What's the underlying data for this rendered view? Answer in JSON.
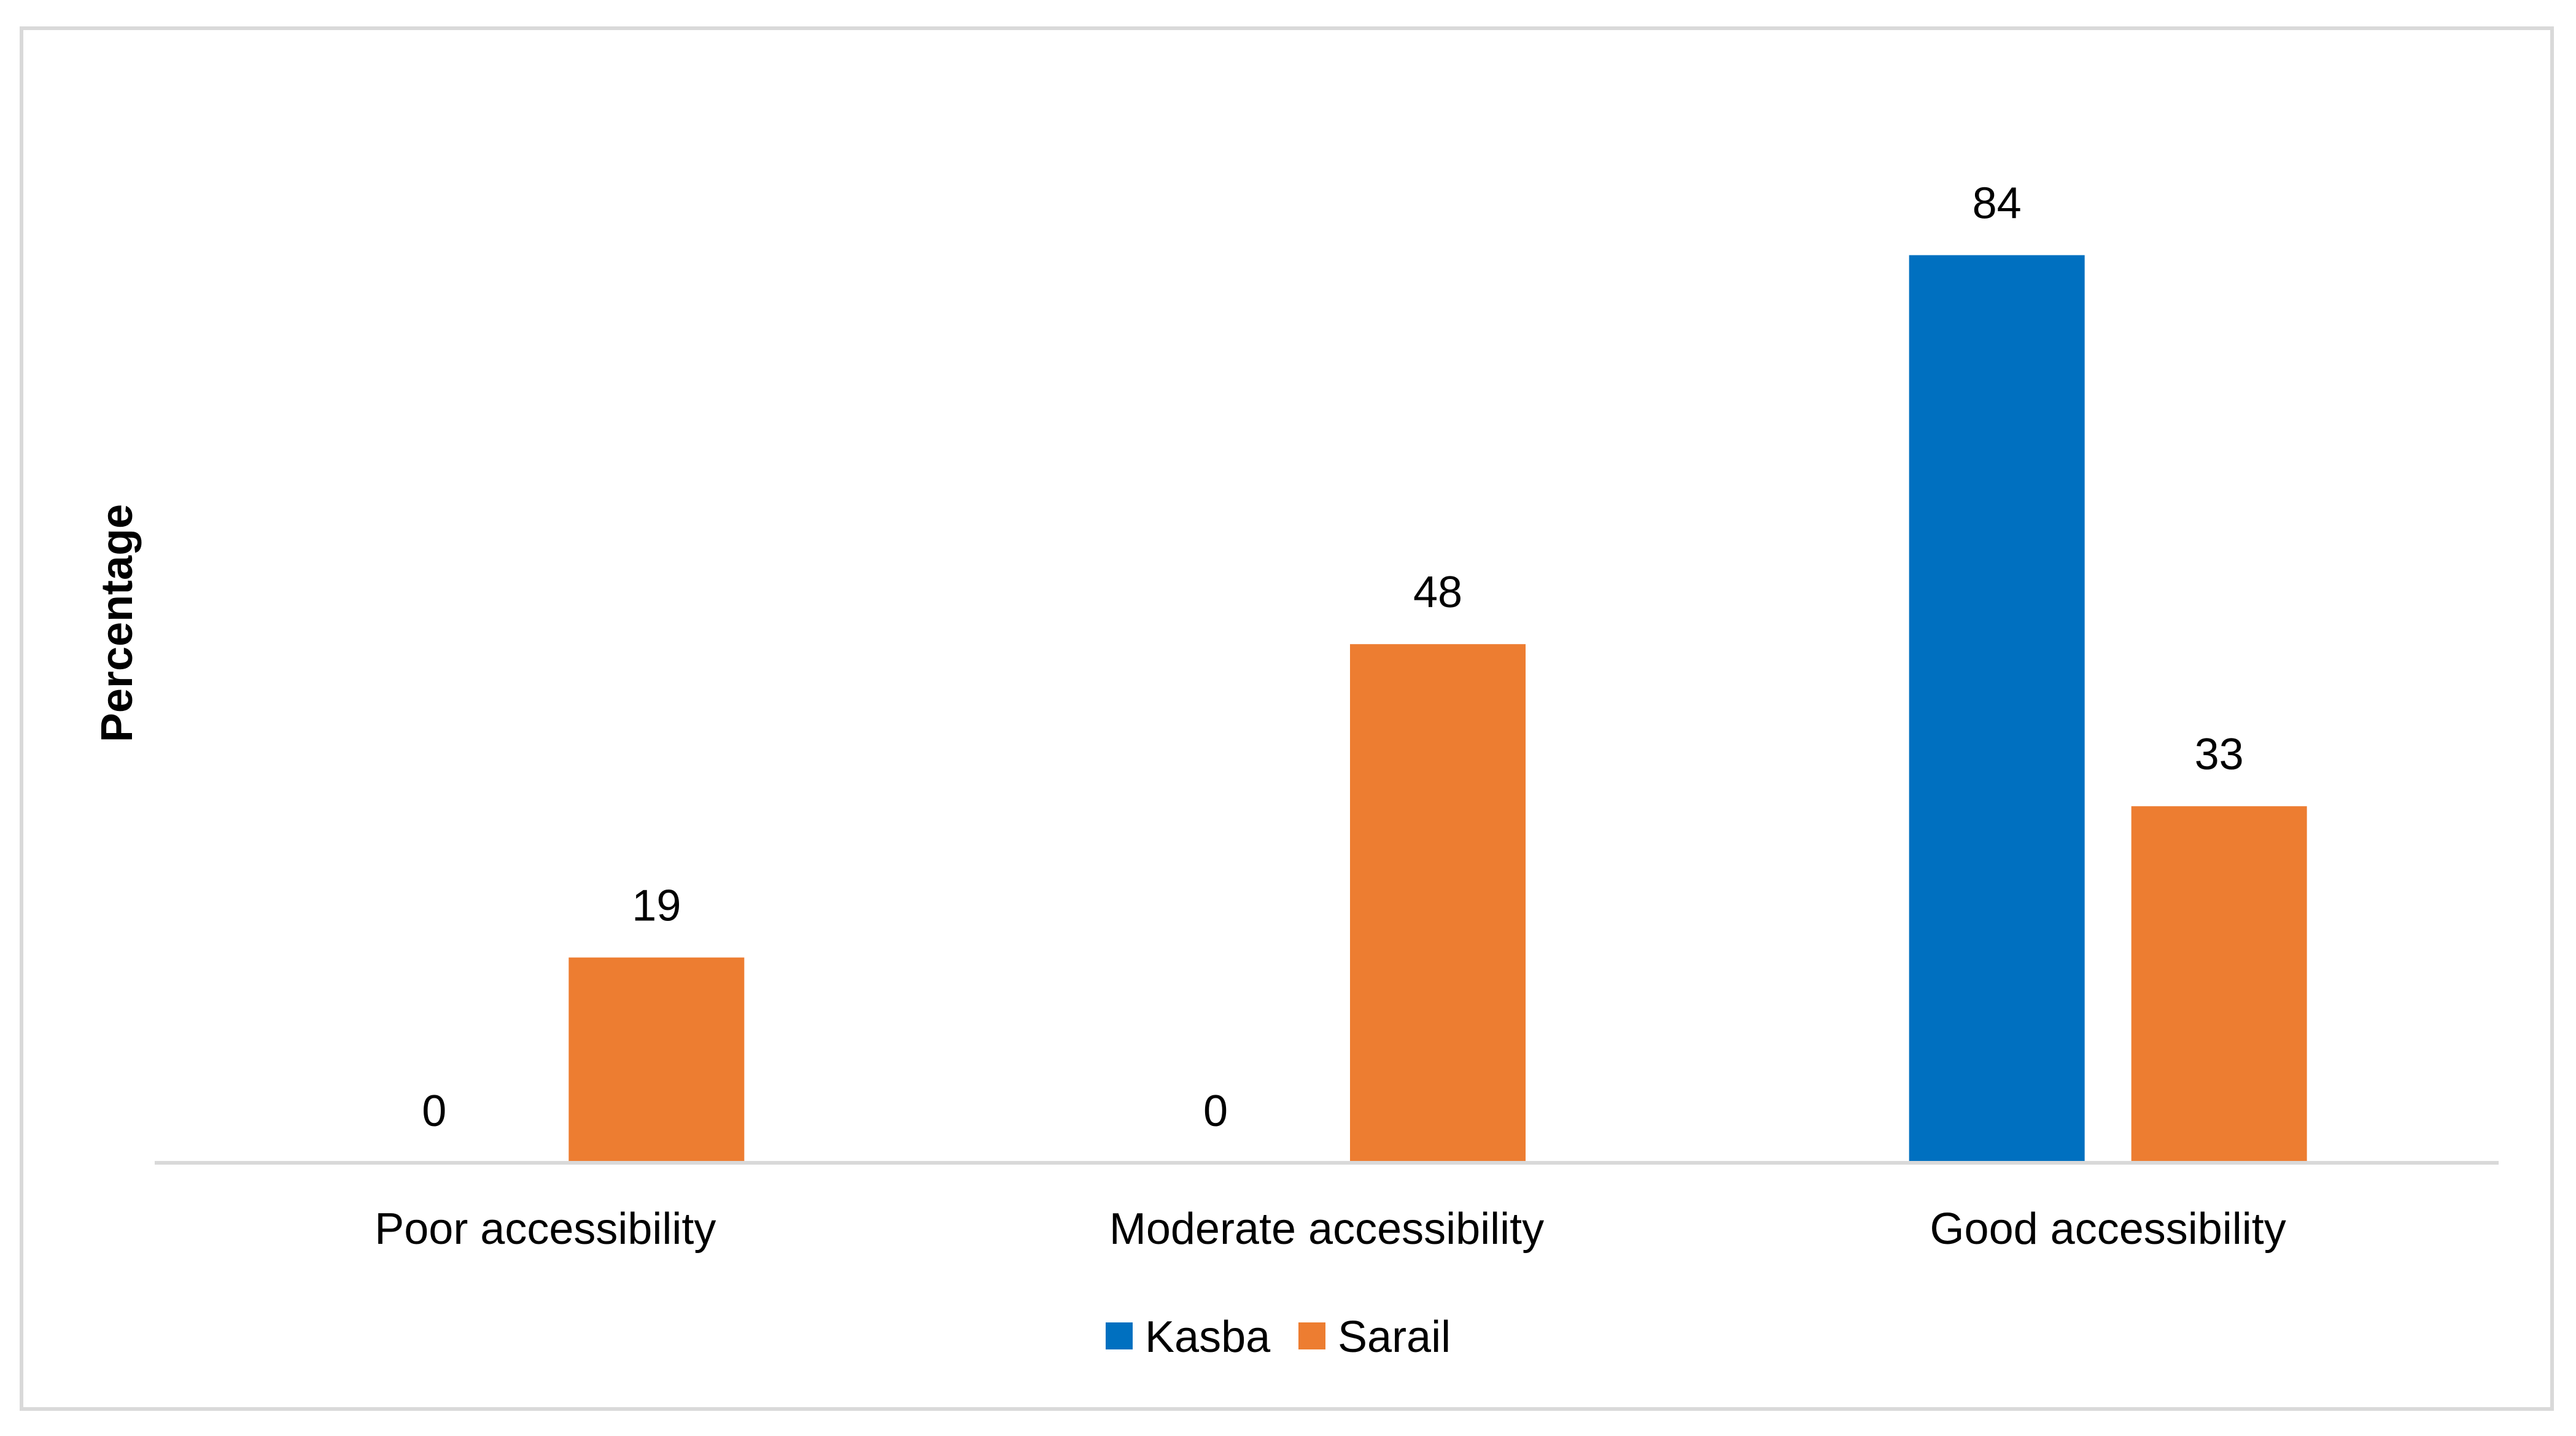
{
  "chart_data": {
    "type": "bar",
    "title": "",
    "xlabel": "",
    "ylabel": "Percentage",
    "categories": [
      "Poor accessibility",
      "Moderate accessibility",
      "Good accessibility"
    ],
    "series": [
      {
        "name": "Kasba",
        "values": [
          0,
          0,
          84
        ],
        "color": "#0070C0"
      },
      {
        "name": "Sarail",
        "values": [
          19,
          48,
          33
        ],
        "color": "#ED7D31"
      }
    ],
    "ylim": [
      0,
      100
    ],
    "grid": false,
    "legend": "bottom-center",
    "data_labels": true
  }
}
